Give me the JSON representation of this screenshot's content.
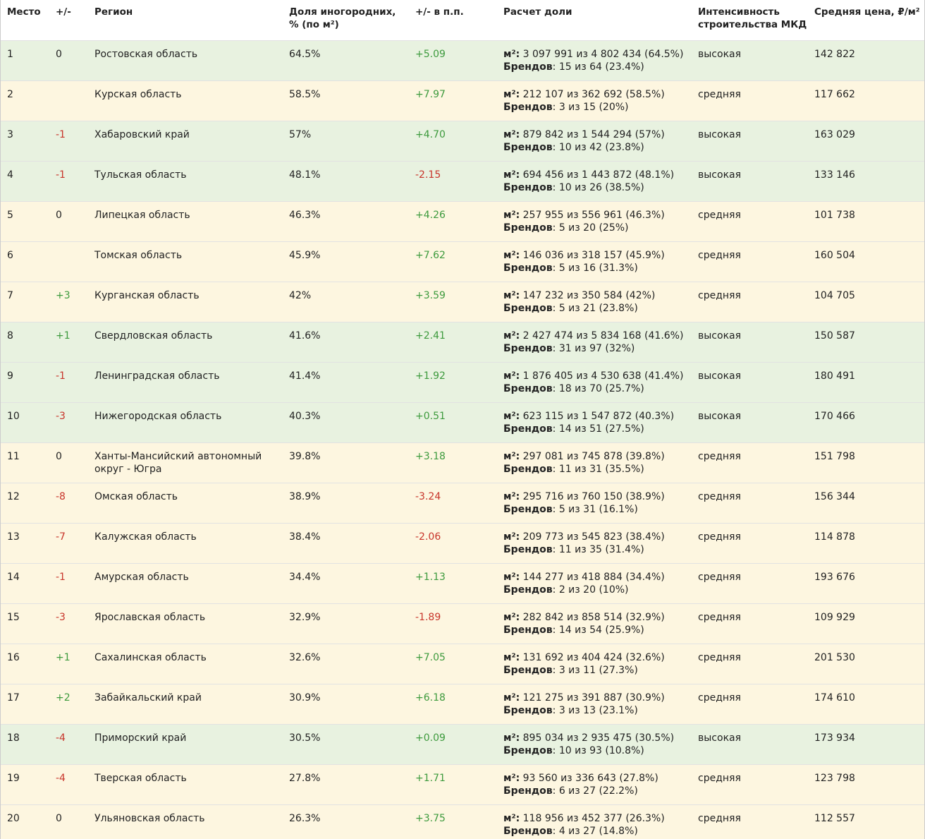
{
  "table": {
    "header": [
      "Место",
      "+/-",
      "Регион",
      "Доля иногородних,\n% (по м²)",
      "+/- в п.п.",
      "Расчет доли",
      "Интенсивность\nстроительства МКД",
      "Средняя цена, ₽/м²"
    ],
    "calc_labels": {
      "m2": "м²:",
      "brands": "Брендов"
    },
    "colors": {
      "up": "#3d9a3d",
      "down": "#c8352b"
    },
    "rows": [
      {
        "rank": "1",
        "change": "0",
        "region": "Ростовская область",
        "share": "64.5%",
        "delta": "+5.09",
        "m2": "3 097 991 из 4 802 434 (64.5%)",
        "brands": "15 из 64 (23.4%)",
        "intensity": "высокая",
        "price": "142 822",
        "bg": "#e8f2e0"
      },
      {
        "rank": "2",
        "change": null,
        "region": "Курская область",
        "share": "58.5%",
        "delta": "+7.97",
        "m2": "212 107 из 362 692 (58.5%)",
        "brands": "3 из 15 (20%)",
        "intensity": "средняя",
        "price": "117 662",
        "bg": "#fdf6e0"
      },
      {
        "rank": "3",
        "change": "-1",
        "region": "Хабаровский край",
        "share": "57%",
        "delta": "+4.70",
        "m2": "879 842 из 1 544 294 (57%)",
        "brands": "10 из 42 (23.8%)",
        "intensity": "высокая",
        "price": "163 029",
        "bg": "#e8f2e0"
      },
      {
        "rank": "4",
        "change": "-1",
        "region": "Тульская область",
        "share": "48.1%",
        "delta": "-2.15",
        "m2": "694 456 из 1 443 872 (48.1%)",
        "brands": "10 из 26 (38.5%)",
        "intensity": "высокая",
        "price": "133 146",
        "bg": "#e8f2e0"
      },
      {
        "rank": "5",
        "change": "0",
        "region": "Липецкая область",
        "share": "46.3%",
        "delta": "+4.26",
        "m2": "257 955 из 556 961 (46.3%)",
        "brands": "5 из 20 (25%)",
        "intensity": "средняя",
        "price": "101 738",
        "bg": "#fdf6e0"
      },
      {
        "rank": "6",
        "change": null,
        "region": "Томская область",
        "share": "45.9%",
        "delta": "+7.62",
        "m2": "146 036 из 318 157 (45.9%)",
        "brands": "5 из 16 (31.3%)",
        "intensity": "средняя",
        "price": "160 504",
        "bg": "#fdf6e0"
      },
      {
        "rank": "7",
        "change": "+3",
        "region": "Курганская область",
        "share": "42%",
        "delta": "+3.59",
        "m2": "147 232 из 350 584 (42%)",
        "brands": "5 из 21 (23.8%)",
        "intensity": "средняя",
        "price": "104 705",
        "bg": "#fdf6e0"
      },
      {
        "rank": "8",
        "change": "+1",
        "region": "Свердловская область",
        "share": "41.6%",
        "delta": "+2.41",
        "m2": "2 427 474 из 5 834 168 (41.6%)",
        "brands": "31 из 97 (32%)",
        "intensity": "высокая",
        "price": "150 587",
        "bg": "#e8f2e0"
      },
      {
        "rank": "9",
        "change": "-1",
        "region": "Ленинградская область",
        "share": "41.4%",
        "delta": "+1.92",
        "m2": "1 876 405 из 4 530 638 (41.4%)",
        "brands": "18 из 70 (25.7%)",
        "intensity": "высокая",
        "price": "180 491",
        "bg": "#e8f2e0"
      },
      {
        "rank": "10",
        "change": "-3",
        "region": "Нижегородская область",
        "share": "40.3%",
        "delta": "+0.51",
        "m2": "623 115 из 1 547 872 (40.3%)",
        "brands": "14 из 51 (27.5%)",
        "intensity": "высокая",
        "price": "170 466",
        "bg": "#e8f2e0"
      },
      {
        "rank": "11",
        "change": "0",
        "region": "Ханты-Мансийский автономный округ - Югра",
        "share": "39.8%",
        "delta": "+3.18",
        "m2": "297 081 из 745 878 (39.8%)",
        "brands": "11 из 31 (35.5%)",
        "intensity": "средняя",
        "price": "151 798",
        "bg": "#fdf6e0"
      },
      {
        "rank": "12",
        "change": "-8",
        "region": "Омская область",
        "share": "38.9%",
        "delta": "-3.24",
        "m2": "295 716 из 760 150 (38.9%)",
        "brands": "5 из 31 (16.1%)",
        "intensity": "средняя",
        "price": "156 344",
        "bg": "#fdf6e0"
      },
      {
        "rank": "13",
        "change": "-7",
        "region": "Калужская область",
        "share": "38.4%",
        "delta": "-2.06",
        "m2": "209 773 из 545 823 (38.4%)",
        "brands": "11 из 35 (31.4%)",
        "intensity": "средняя",
        "price": "114 878",
        "bg": "#fdf6e0"
      },
      {
        "rank": "14",
        "change": "-1",
        "region": "Амурская область",
        "share": "34.4%",
        "delta": "+1.13",
        "m2": "144 277 из 418 884 (34.4%)",
        "brands": "2 из 20 (10%)",
        "intensity": "средняя",
        "price": "193 676",
        "bg": "#fdf6e0"
      },
      {
        "rank": "15",
        "change": "-3",
        "region": "Ярославская область",
        "share": "32.9%",
        "delta": "-1.89",
        "m2": "282 842 из 858 514 (32.9%)",
        "brands": "14 из 54 (25.9%)",
        "intensity": "средняя",
        "price": "109 929",
        "bg": "#fdf6e0"
      },
      {
        "rank": "16",
        "change": "+1",
        "region": "Сахалинская область",
        "share": "32.6%",
        "delta": "+7.05",
        "m2": "131 692 из 404 424 (32.6%)",
        "brands": "3 из 11 (27.3%)",
        "intensity": "средняя",
        "price": "201 530",
        "bg": "#fdf6e0"
      },
      {
        "rank": "17",
        "change": "+2",
        "region": "Забайкальский край",
        "share": "30.9%",
        "delta": "+6.18",
        "m2": "121 275 из 391 887 (30.9%)",
        "brands": "3 из 13 (23.1%)",
        "intensity": "средняя",
        "price": "174 610",
        "bg": "#fdf6e0"
      },
      {
        "rank": "18",
        "change": "-4",
        "region": "Приморский край",
        "share": "30.5%",
        "delta": "+0.09",
        "m2": "895 034 из 2 935 475 (30.5%)",
        "brands": "10 из 93 (10.8%)",
        "intensity": "высокая",
        "price": "173 934",
        "bg": "#e8f2e0"
      },
      {
        "rank": "19",
        "change": "-4",
        "region": "Тверская область",
        "share": "27.8%",
        "delta": "+1.71",
        "m2": "93 560 из 336 643 (27.8%)",
        "brands": "6 из 27 (22.2%)",
        "intensity": "средняя",
        "price": "123 798",
        "bg": "#fdf6e0"
      },
      {
        "rank": "20",
        "change": "0",
        "region": "Ульяновская область",
        "share": "26.3%",
        "delta": "+3.75",
        "m2": "118 956 из 452 377 (26.3%)",
        "brands": "4 из 27 (14.8%)",
        "intensity": "средняя",
        "price": "112 557",
        "bg": "#fdf6e0"
      }
    ]
  }
}
